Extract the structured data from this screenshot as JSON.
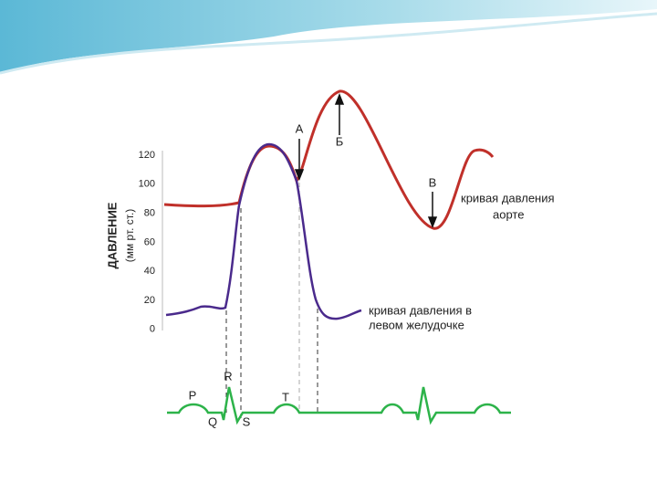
{
  "diagram": {
    "axis_label": "ДАВЛЕНИЕ",
    "axis_unit": "(мм рт. ст.)",
    "ticks": [
      "120",
      "100",
      "80",
      "60",
      "40",
      "20",
      "0"
    ],
    "points": {
      "a": "А",
      "b": "Б",
      "v": "В"
    },
    "aorta_label": [
      "кривая давления",
      "аорте"
    ],
    "ventricle_label": [
      "кривая давления в",
      "левом желудочке"
    ],
    "ecg": {
      "p": "P",
      "r": "R",
      "q": "Q",
      "s": "S",
      "t": "T"
    }
  }
}
